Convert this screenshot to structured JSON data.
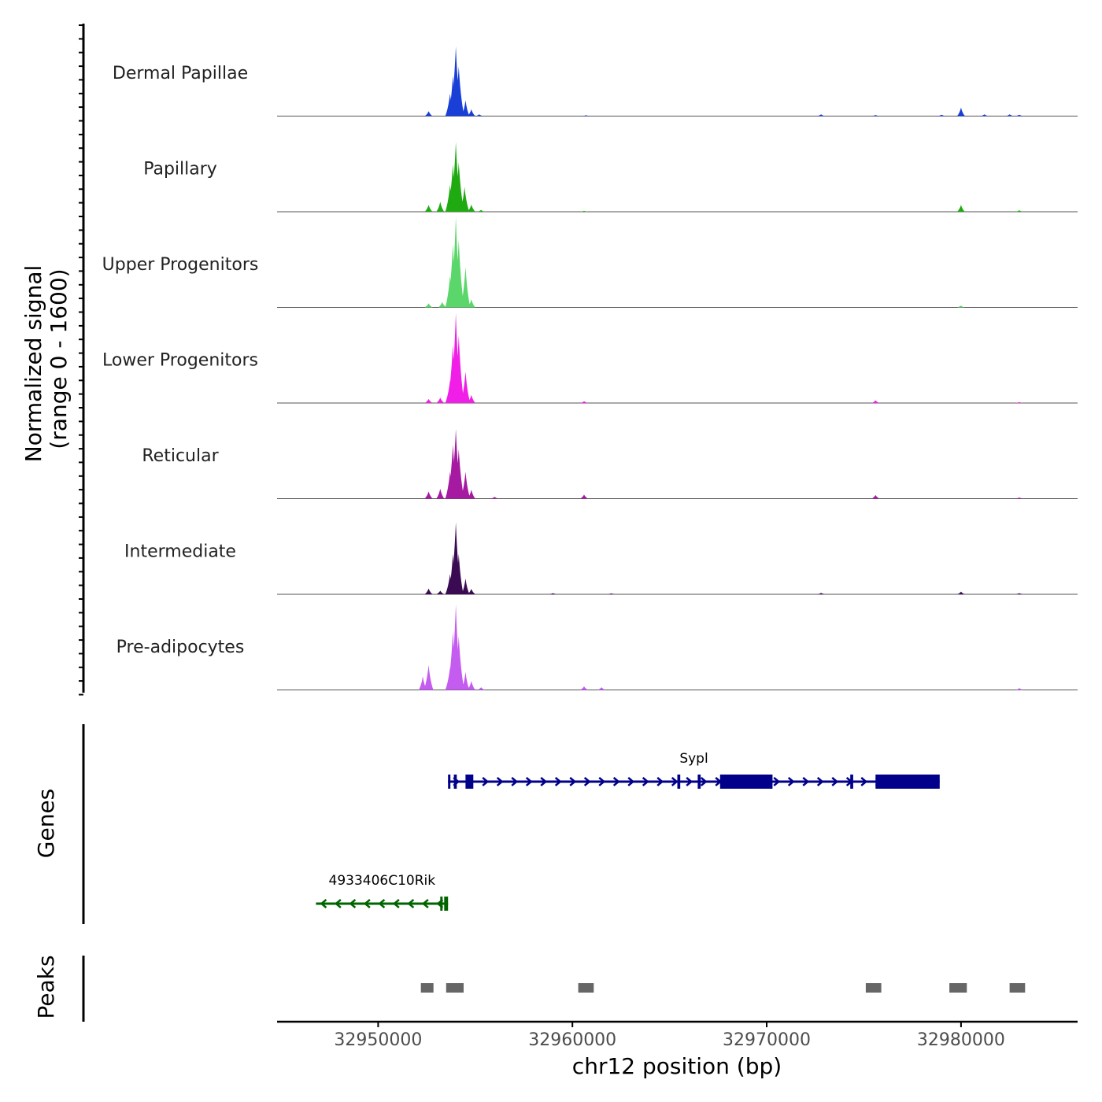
{
  "chart_data": {
    "type": "area",
    "title": "",
    "ylabel": "Normalized signal",
    "ylabel_range": "(range 0 - 1600)",
    "xlabel": "chr12 position (bp)",
    "xlim": [
      32944800,
      32986000
    ],
    "ylim": [
      0,
      1600
    ],
    "x_ticks": [
      32950000,
      32960000,
      32970000,
      32980000
    ],
    "x_tick_labels": [
      "32950000",
      "32960000",
      "32970000",
      "32980000"
    ],
    "tracks": [
      {
        "name": "Dermal Papillae",
        "color": "#1a3fd6",
        "peaks": [
          [
            32952600,
            110
          ],
          [
            32953700,
            500
          ],
          [
            32953850,
            900
          ],
          [
            32954000,
            1550
          ],
          [
            32954150,
            1100
          ],
          [
            32954500,
            350
          ],
          [
            32954800,
            150
          ],
          [
            32955200,
            40
          ],
          [
            32960700,
            20
          ],
          [
            32972800,
            40
          ],
          [
            32975600,
            25
          ],
          [
            32979000,
            30
          ],
          [
            32980000,
            190
          ],
          [
            32981200,
            40
          ],
          [
            32982500,
            40
          ],
          [
            32983000,
            30
          ]
        ]
      },
      {
        "name": "Papillary",
        "color": "#1faa12",
        "peaks": [
          [
            32952600,
            150
          ],
          [
            32953200,
            220
          ],
          [
            32953700,
            600
          ],
          [
            32953850,
            1050
          ],
          [
            32954000,
            1550
          ],
          [
            32954150,
            1100
          ],
          [
            32954450,
            550
          ],
          [
            32954800,
            160
          ],
          [
            32955300,
            40
          ],
          [
            32960600,
            20
          ],
          [
            32980000,
            150
          ],
          [
            32983000,
            30
          ]
        ]
      },
      {
        "name": "Upper Progenitors",
        "color": "#5bd66a",
        "peaks": [
          [
            32952600,
            90
          ],
          [
            32953300,
            120
          ],
          [
            32953700,
            700
          ],
          [
            32953850,
            1400
          ],
          [
            32954000,
            2000
          ],
          [
            32954150,
            1500
          ],
          [
            32954500,
            900
          ],
          [
            32954800,
            180
          ],
          [
            32980000,
            40
          ]
        ]
      },
      {
        "name": "Lower Progenitors",
        "color": "#f01ee6",
        "peaks": [
          [
            32952600,
            90
          ],
          [
            32953200,
            120
          ],
          [
            32953700,
            500
          ],
          [
            32953850,
            1300
          ],
          [
            32954000,
            2000
          ],
          [
            32954150,
            1500
          ],
          [
            32954500,
            700
          ],
          [
            32954800,
            180
          ],
          [
            32960600,
            40
          ],
          [
            32975600,
            60
          ],
          [
            32983000,
            20
          ]
        ]
      },
      {
        "name": "Reticular",
        "color": "#a51aa0",
        "peaks": [
          [
            32952600,
            160
          ],
          [
            32953200,
            220
          ],
          [
            32953700,
            600
          ],
          [
            32953850,
            1200
          ],
          [
            32954000,
            1550
          ],
          [
            32954150,
            1100
          ],
          [
            32954500,
            600
          ],
          [
            32954800,
            200
          ],
          [
            32956000,
            40
          ],
          [
            32960600,
            90
          ],
          [
            32975600,
            80
          ],
          [
            32983000,
            25
          ]
        ]
      },
      {
        "name": "Intermediate",
        "color": "#3a0a52",
        "peaks": [
          [
            32952600,
            130
          ],
          [
            32953200,
            80
          ],
          [
            32953700,
            450
          ],
          [
            32953850,
            900
          ],
          [
            32954000,
            1600
          ],
          [
            32954150,
            900
          ],
          [
            32954500,
            350
          ],
          [
            32954800,
            120
          ],
          [
            32959000,
            25
          ],
          [
            32962000,
            20
          ],
          [
            32972800,
            30
          ],
          [
            32980000,
            60
          ],
          [
            32983000,
            25
          ]
        ]
      },
      {
        "name": "Pre-adipocytes",
        "color": "#c45cf0",
        "peaks": [
          [
            32952300,
            300
          ],
          [
            32952600,
            550
          ],
          [
            32953700,
            500
          ],
          [
            32953850,
            1300
          ],
          [
            32954000,
            1900
          ],
          [
            32954150,
            1200
          ],
          [
            32954500,
            400
          ],
          [
            32954800,
            200
          ],
          [
            32955300,
            60
          ],
          [
            32960600,
            80
          ],
          [
            32961500,
            60
          ],
          [
            32983000,
            40
          ]
        ]
      }
    ],
    "genes_title": "Genes",
    "genes": [
      {
        "name": "Sypl",
        "strand": "+",
        "start": 32953600,
        "end": 32978900,
        "color": "#00008b",
        "exons": [
          [
            32953600,
            32953700
          ],
          [
            32953900,
            32954050
          ],
          [
            32954500,
            32954900
          ],
          [
            32965400,
            32965550
          ],
          [
            32966450,
            32966600
          ],
          [
            32967600,
            32970300
          ],
          [
            32974300,
            32974450
          ],
          [
            32975600,
            32978900
          ]
        ]
      },
      {
        "name": "4933406C10Rik",
        "strand": "-",
        "start": 32946800,
        "end": 32953600,
        "color": "#006400",
        "exons": [
          [
            32953200,
            32953300
          ],
          [
            32953400,
            32953600
          ]
        ]
      }
    ],
    "peaks_title": "Peaks",
    "peak_color": "#666666",
    "peaks": [
      [
        32952200,
        32952850
      ],
      [
        32953500,
        32954400
      ],
      [
        32960300,
        32961100
      ],
      [
        32975100,
        32975900
      ],
      [
        32979400,
        32980300
      ],
      [
        32982500,
        32983300
      ]
    ]
  }
}
